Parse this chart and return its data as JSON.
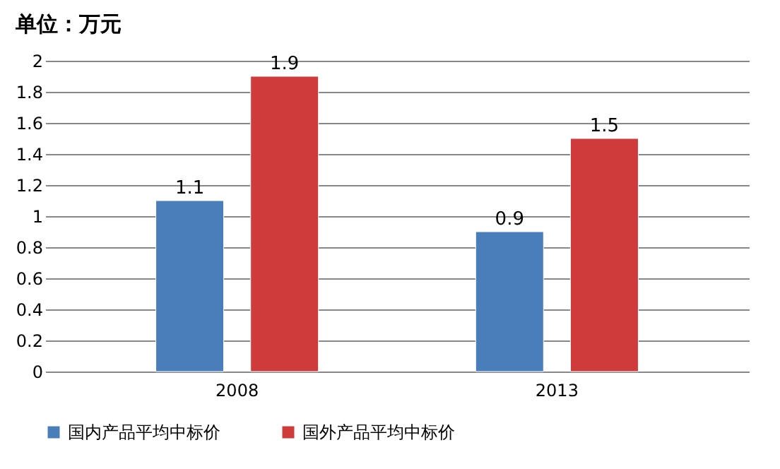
{
  "chart_data": {
    "type": "bar",
    "title": "单位：万元",
    "categories": [
      "2008",
      "2013"
    ],
    "series": [
      {
        "name": "国内产品平均中标价",
        "color": "#4a7ebb",
        "values": [
          1.1,
          0.9
        ]
      },
      {
        "name": "国外产品平均中标价",
        "color": "#cf3a3a",
        "values": [
          1.9,
          1.5
        ]
      }
    ],
    "ylim": [
      0,
      2
    ],
    "yticks": [
      0,
      0.2,
      0.4,
      0.6,
      0.8,
      1,
      1.2,
      1.4,
      1.6,
      1.8,
      2
    ],
    "grid": "y",
    "legend": "bottom",
    "data_labels": true
  }
}
